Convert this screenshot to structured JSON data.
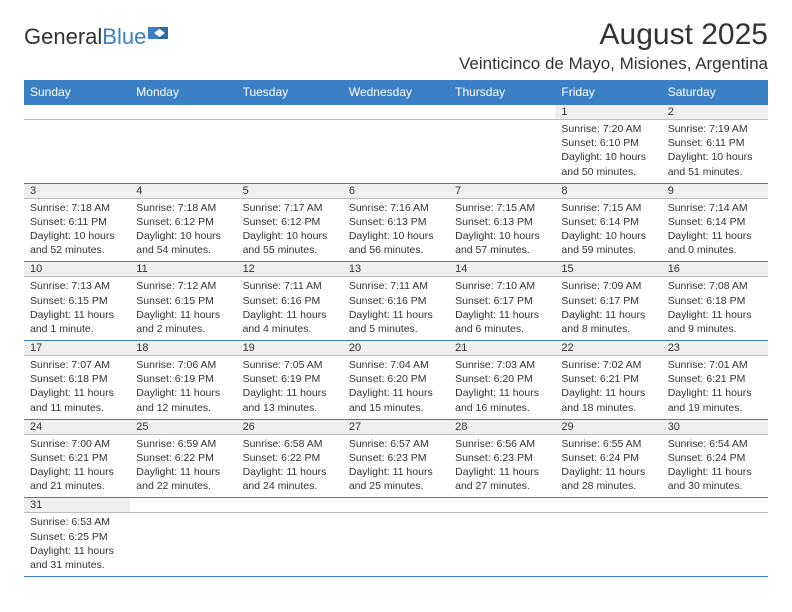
{
  "logo": {
    "text1": "General",
    "text2": "Blue"
  },
  "title": "August 2025",
  "location": "Veinticinco de Mayo, Misiones, Argentina",
  "headers": [
    "Sunday",
    "Monday",
    "Tuesday",
    "Wednesday",
    "Thursday",
    "Friday",
    "Saturday"
  ],
  "colors": {
    "header_bg": "#3b7fc4",
    "header_fg": "#ffffff",
    "daynum_bg": "#efefef",
    "border": "#3b7fc4",
    "text": "#333333"
  },
  "weeks": [
    [
      null,
      null,
      null,
      null,
      null,
      {
        "n": "1",
        "sr": "7:20 AM",
        "ss": "6:10 PM",
        "dl": "10 hours and 50 minutes."
      },
      {
        "n": "2",
        "sr": "7:19 AM",
        "ss": "6:11 PM",
        "dl": "10 hours and 51 minutes."
      }
    ],
    [
      {
        "n": "3",
        "sr": "7:18 AM",
        "ss": "6:11 PM",
        "dl": "10 hours and 52 minutes."
      },
      {
        "n": "4",
        "sr": "7:18 AM",
        "ss": "6:12 PM",
        "dl": "10 hours and 54 minutes."
      },
      {
        "n": "5",
        "sr": "7:17 AM",
        "ss": "6:12 PM",
        "dl": "10 hours and 55 minutes."
      },
      {
        "n": "6",
        "sr": "7:16 AM",
        "ss": "6:13 PM",
        "dl": "10 hours and 56 minutes."
      },
      {
        "n": "7",
        "sr": "7:15 AM",
        "ss": "6:13 PM",
        "dl": "10 hours and 57 minutes."
      },
      {
        "n": "8",
        "sr": "7:15 AM",
        "ss": "6:14 PM",
        "dl": "10 hours and 59 minutes."
      },
      {
        "n": "9",
        "sr": "7:14 AM",
        "ss": "6:14 PM",
        "dl": "11 hours and 0 minutes."
      }
    ],
    [
      {
        "n": "10",
        "sr": "7:13 AM",
        "ss": "6:15 PM",
        "dl": "11 hours and 1 minute."
      },
      {
        "n": "11",
        "sr": "7:12 AM",
        "ss": "6:15 PM",
        "dl": "11 hours and 2 minutes."
      },
      {
        "n": "12",
        "sr": "7:11 AM",
        "ss": "6:16 PM",
        "dl": "11 hours and 4 minutes."
      },
      {
        "n": "13",
        "sr": "7:11 AM",
        "ss": "6:16 PM",
        "dl": "11 hours and 5 minutes."
      },
      {
        "n": "14",
        "sr": "7:10 AM",
        "ss": "6:17 PM",
        "dl": "11 hours and 6 minutes."
      },
      {
        "n": "15",
        "sr": "7:09 AM",
        "ss": "6:17 PM",
        "dl": "11 hours and 8 minutes."
      },
      {
        "n": "16",
        "sr": "7:08 AM",
        "ss": "6:18 PM",
        "dl": "11 hours and 9 minutes."
      }
    ],
    [
      {
        "n": "17",
        "sr": "7:07 AM",
        "ss": "6:18 PM",
        "dl": "11 hours and 11 minutes."
      },
      {
        "n": "18",
        "sr": "7:06 AM",
        "ss": "6:19 PM",
        "dl": "11 hours and 12 minutes."
      },
      {
        "n": "19",
        "sr": "7:05 AM",
        "ss": "6:19 PM",
        "dl": "11 hours and 13 minutes."
      },
      {
        "n": "20",
        "sr": "7:04 AM",
        "ss": "6:20 PM",
        "dl": "11 hours and 15 minutes."
      },
      {
        "n": "21",
        "sr": "7:03 AM",
        "ss": "6:20 PM",
        "dl": "11 hours and 16 minutes."
      },
      {
        "n": "22",
        "sr": "7:02 AM",
        "ss": "6:21 PM",
        "dl": "11 hours and 18 minutes."
      },
      {
        "n": "23",
        "sr": "7:01 AM",
        "ss": "6:21 PM",
        "dl": "11 hours and 19 minutes."
      }
    ],
    [
      {
        "n": "24",
        "sr": "7:00 AM",
        "ss": "6:21 PM",
        "dl": "11 hours and 21 minutes."
      },
      {
        "n": "25",
        "sr": "6:59 AM",
        "ss": "6:22 PM",
        "dl": "11 hours and 22 minutes."
      },
      {
        "n": "26",
        "sr": "6:58 AM",
        "ss": "6:22 PM",
        "dl": "11 hours and 24 minutes."
      },
      {
        "n": "27",
        "sr": "6:57 AM",
        "ss": "6:23 PM",
        "dl": "11 hours and 25 minutes."
      },
      {
        "n": "28",
        "sr": "6:56 AM",
        "ss": "6:23 PM",
        "dl": "11 hours and 27 minutes."
      },
      {
        "n": "29",
        "sr": "6:55 AM",
        "ss": "6:24 PM",
        "dl": "11 hours and 28 minutes."
      },
      {
        "n": "30",
        "sr": "6:54 AM",
        "ss": "6:24 PM",
        "dl": "11 hours and 30 minutes."
      }
    ],
    [
      {
        "n": "31",
        "sr": "6:53 AM",
        "ss": "6:25 PM",
        "dl": "11 hours and 31 minutes."
      },
      null,
      null,
      null,
      null,
      null,
      null
    ]
  ]
}
